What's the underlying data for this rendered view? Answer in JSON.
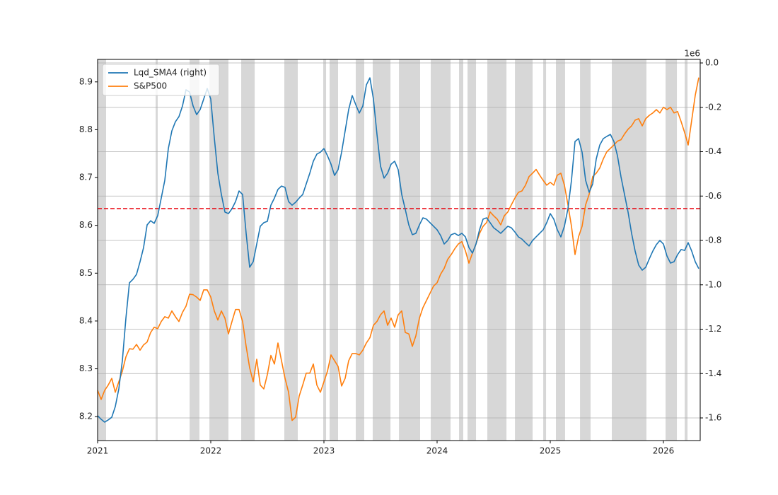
{
  "chart_data": {
    "type": "line",
    "xlim": [
      2021,
      2026.325
    ],
    "xticks": [
      2021,
      2022,
      2023,
      2024,
      2025,
      2026
    ],
    "ylim": [
      8.15,
      8.947
    ],
    "yticks": [
      8.2,
      8.3,
      8.4,
      8.5,
      8.6,
      8.7,
      8.8,
      8.9
    ],
    "y2lim": [
      -1.702,
      0.016
    ],
    "y2ticks": [
      {
        "value": 0,
        "label": "0.0"
      },
      -0.2,
      -0.4,
      -0.6,
      -0.8,
      {
        "value": -1,
        "label": "-1.0"
      },
      -1.2,
      -1.4,
      -1.6
    ],
    "y2_offset_label": "1e6",
    "grid": "y2",
    "legend": "upper left",
    "shade_color": "#d3d3d3",
    "shaded_regions": [
      [
        2021.0,
        2021.075
      ],
      [
        2021.513,
        2021.531
      ],
      [
        2021.813,
        2021.9
      ],
      [
        2021.988,
        2022.156
      ],
      [
        2022.269,
        2022.388
      ],
      [
        2022.65,
        2022.769
      ],
      [
        2022.994,
        2023.019
      ],
      [
        2023.05,
        2023.125
      ],
      [
        2023.281,
        2023.356
      ],
      [
        2023.431,
        2023.588
      ],
      [
        2023.663,
        2023.85
      ],
      [
        2023.944,
        2024.119
      ],
      [
        2024.194,
        2024.231
      ],
      [
        2024.269,
        2024.344
      ],
      [
        2024.444,
        2024.613
      ],
      [
        2024.688,
        2024.844
      ],
      [
        2024.938,
        2024.963
      ],
      [
        2025.05,
        2025.131
      ],
      [
        2025.263,
        2025.356
      ],
      [
        2025.544,
        2025.85
      ],
      [
        2026.019,
        2026.119
      ],
      [
        2026.188,
        2026.213
      ]
    ],
    "hline": {
      "value": 8.635,
      "color": "#e8000b",
      "axis": "y"
    },
    "x": [
      2021,
      2021.03125,
      2021.0625,
      2021.09375,
      2021.125,
      2021.15625,
      2021.1875,
      2021.21875,
      2021.25,
      2021.28125,
      2021.3125,
      2021.34375,
      2021.375,
      2021.40625,
      2021.4375,
      2021.46875,
      2021.5,
      2021.53125,
      2021.5625,
      2021.59375,
      2021.625,
      2021.65625,
      2021.6875,
      2021.71875,
      2021.75,
      2021.78125,
      2021.8125,
      2021.84375,
      2021.875,
      2021.90625,
      2021.9375,
      2021.96875,
      2022,
      2022.03125,
      2022.0625,
      2022.09375,
      2022.125,
      2022.15625,
      2022.1875,
      2022.21875,
      2022.25,
      2022.28125,
      2022.3125,
      2022.34375,
      2022.375,
      2022.40625,
      2022.4375,
      2022.46875,
      2022.5,
      2022.53125,
      2022.5625,
      2022.59375,
      2022.625,
      2022.65625,
      2022.6875,
      2022.71875,
      2022.75,
      2022.78125,
      2022.8125,
      2022.84375,
      2022.875,
      2022.90625,
      2022.9375,
      2022.96875,
      2023,
      2023.03125,
      2023.0625,
      2023.09375,
      2023.125,
      2023.15625,
      2023.1875,
      2023.21875,
      2023.25,
      2023.28125,
      2023.3125,
      2023.34375,
      2023.375,
      2023.40625,
      2023.4375,
      2023.46875,
      2023.5,
      2023.53125,
      2023.5625,
      2023.59375,
      2023.625,
      2023.65625,
      2023.6875,
      2023.71875,
      2023.75,
      2023.78125,
      2023.8125,
      2023.84375,
      2023.875,
      2023.90625,
      2023.9375,
      2023.96875,
      2024,
      2024.03125,
      2024.0625,
      2024.09375,
      2024.125,
      2024.15625,
      2024.1875,
      2024.21875,
      2024.25,
      2024.28125,
      2024.3125,
      2024.34375,
      2024.375,
      2024.40625,
      2024.4375,
      2024.46875,
      2024.5,
      2024.53125,
      2024.5625,
      2024.59375,
      2024.625,
      2024.65625,
      2024.6875,
      2024.71875,
      2024.75,
      2024.78125,
      2024.8125,
      2024.84375,
      2024.875,
      2024.90625,
      2024.9375,
      2024.96875,
      2025,
      2025.03125,
      2025.0625,
      2025.09375,
      2025.125,
      2025.15625,
      2025.1875,
      2025.21875,
      2025.25,
      2025.28125,
      2025.3125,
      2025.34375,
      2025.375,
      2025.40625,
      2025.4375,
      2025.46875,
      2025.5,
      2025.53125,
      2025.5625,
      2025.59375,
      2025.625,
      2025.65625,
      2025.6875,
      2025.71875,
      2025.75,
      2025.78125,
      2025.8125,
      2025.84375,
      2025.875,
      2025.90625,
      2025.9375,
      2025.96875,
      2026,
      2026.03125,
      2026.0625,
      2026.09375,
      2026.125,
      2026.15625,
      2026.1875,
      2026.21875,
      2026.25,
      2026.28125,
      2026.3125
    ],
    "series": [
      {
        "name": "Lqd_SMA4 (right)",
        "color": "#1f77b4",
        "axis": "y2",
        "values": [
          -1.59,
          -1.606,
          -1.619,
          -1.609,
          -1.597,
          -1.549,
          -1.469,
          -1.342,
          -1.151,
          -0.991,
          -0.975,
          -0.953,
          -0.896,
          -0.832,
          -0.73,
          -0.711,
          -0.723,
          -0.688,
          -0.609,
          -0.529,
          -0.386,
          -0.306,
          -0.265,
          -0.242,
          -0.194,
          -0.121,
          -0.131,
          -0.194,
          -0.233,
          -0.21,
          -0.163,
          -0.115,
          -0.163,
          -0.338,
          -0.497,
          -0.593,
          -0.672,
          -0.679,
          -0.657,
          -0.625,
          -0.577,
          -0.593,
          -0.768,
          -0.921,
          -0.896,
          -0.816,
          -0.736,
          -0.72,
          -0.714,
          -0.641,
          -0.609,
          -0.57,
          -0.555,
          -0.561,
          -0.625,
          -0.641,
          -0.628,
          -0.609,
          -0.593,
          -0.545,
          -0.497,
          -0.443,
          -0.411,
          -0.402,
          -0.386,
          -0.418,
          -0.456,
          -0.507,
          -0.481,
          -0.402,
          -0.306,
          -0.21,
          -0.147,
          -0.188,
          -0.226,
          -0.194,
          -0.099,
          -0.067,
          -0.163,
          -0.322,
          -0.465,
          -0.519,
          -0.497,
          -0.456,
          -0.443,
          -0.481,
          -0.593,
          -0.66,
          -0.73,
          -0.774,
          -0.768,
          -0.73,
          -0.698,
          -0.704,
          -0.72,
          -0.736,
          -0.752,
          -0.778,
          -0.816,
          -0.8,
          -0.774,
          -0.768,
          -0.778,
          -0.768,
          -0.784,
          -0.832,
          -0.857,
          -0.816,
          -0.752,
          -0.704,
          -0.698,
          -0.72,
          -0.743,
          -0.755,
          -0.768,
          -0.752,
          -0.736,
          -0.743,
          -0.762,
          -0.784,
          -0.794,
          -0.81,
          -0.825,
          -0.8,
          -0.784,
          -0.768,
          -0.752,
          -0.72,
          -0.679,
          -0.704,
          -0.752,
          -0.784,
          -0.736,
          -0.657,
          -0.529,
          -0.354,
          -0.341,
          -0.402,
          -0.529,
          -0.583,
          -0.545,
          -0.433,
          -0.37,
          -0.341,
          -0.331,
          -0.322,
          -0.354,
          -0.418,
          -0.513,
          -0.593,
          -0.672,
          -0.768,
          -0.848,
          -0.911,
          -0.934,
          -0.921,
          -0.883,
          -0.848,
          -0.819,
          -0.8,
          -0.816,
          -0.87,
          -0.902,
          -0.896,
          -0.864,
          -0.841,
          -0.845,
          -0.81,
          -0.848,
          -0.896,
          -0.927
        ]
      },
      {
        "name": "S&P500",
        "color": "#ff7f0e",
        "axis": "y",
        "values": [
          8.255,
          8.236,
          8.255,
          8.266,
          8.28,
          8.251,
          8.273,
          8.295,
          8.325,
          8.342,
          8.341,
          8.351,
          8.339,
          8.35,
          8.356,
          8.376,
          8.387,
          8.384,
          8.399,
          8.409,
          8.406,
          8.421,
          8.409,
          8.399,
          8.418,
          8.431,
          8.456,
          8.455,
          8.45,
          8.443,
          8.465,
          8.465,
          8.45,
          8.421,
          8.402,
          8.421,
          8.406,
          8.373,
          8.399,
          8.424,
          8.424,
          8.399,
          8.347,
          8.302,
          8.273,
          8.32,
          8.266,
          8.258,
          8.288,
          8.328,
          8.31,
          8.354,
          8.317,
          8.28,
          8.251,
          8.192,
          8.199,
          8.243,
          8.266,
          8.291,
          8.291,
          8.31,
          8.266,
          8.251,
          8.273,
          8.295,
          8.329,
          8.317,
          8.305,
          8.264,
          8.28,
          8.317,
          8.332,
          8.332,
          8.329,
          8.339,
          8.354,
          8.365,
          8.391,
          8.399,
          8.413,
          8.421,
          8.391,
          8.406,
          8.387,
          8.413,
          8.421,
          8.376,
          8.373,
          8.347,
          8.369,
          8.406,
          8.428,
          8.443,
          8.458,
          8.473,
          8.48,
          8.498,
          8.51,
          8.529,
          8.539,
          8.551,
          8.561,
          8.566,
          8.547,
          8.521,
          8.542,
          8.561,
          8.583,
          8.598,
          8.606,
          8.628,
          8.62,
          8.613,
          8.601,
          8.62,
          8.628,
          8.643,
          8.657,
          8.669,
          8.672,
          8.684,
          8.702,
          8.709,
          8.717,
          8.705,
          8.694,
          8.684,
          8.69,
          8.684,
          8.705,
          8.709,
          8.684,
          8.643,
          8.598,
          8.539,
          8.576,
          8.598,
          8.643,
          8.665,
          8.702,
          8.709,
          8.72,
          8.739,
          8.754,
          8.761,
          8.768,
          8.776,
          8.779,
          8.791,
          8.801,
          8.808,
          8.82,
          8.823,
          8.808,
          8.823,
          8.83,
          8.835,
          8.842,
          8.835,
          8.847,
          8.842,
          8.847,
          8.835,
          8.838,
          8.817,
          8.794,
          8.768,
          8.82,
          8.872,
          8.909
        ]
      }
    ]
  }
}
